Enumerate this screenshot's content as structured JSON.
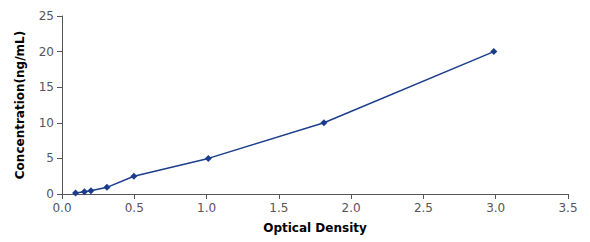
{
  "chart_data": {
    "type": "line",
    "x": [
      0.094,
      0.155,
      0.2,
      0.311,
      0.497,
      1.012,
      1.812,
      2.987
    ],
    "values": [
      0.156,
      0.312,
      0.469,
      0.938,
      2.5,
      5.0,
      10.0,
      20.0
    ],
    "color": "#1c3d8c",
    "marker": "diamond",
    "xlabel": "Optical Density",
    "ylabel": "Concentration(ng/mL)",
    "xlim": [
      0,
      3.5
    ],
    "ylim": [
      0,
      25
    ],
    "xticks": [
      {
        "value": 0,
        "label": "0.0"
      },
      0.5,
      {
        "value": 1,
        "label": "1.0"
      },
      1.5,
      {
        "value": 2,
        "label": "2.0"
      },
      2.5,
      {
        "value": 3,
        "label": "3.0"
      },
      3.5
    ],
    "yticks": [
      0,
      5,
      10,
      15,
      20,
      25
    ],
    "grid": false
  }
}
